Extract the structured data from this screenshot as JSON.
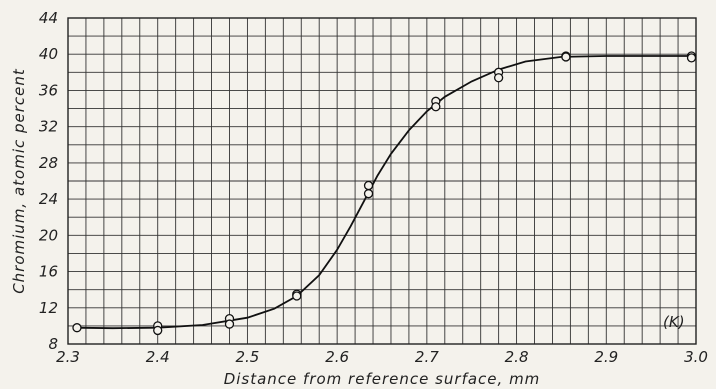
{
  "chart_data": {
    "type": "scatter",
    "xlabel": "Distance from reference surface, mm",
    "ylabel": "Chromium, atomic percent",
    "xlim": [
      2.3,
      3.0
    ],
    "ylim": [
      8,
      44
    ],
    "x_ticks": [
      "2.3",
      "2.4",
      "2.5",
      "2.6",
      "2.7",
      "2.8",
      "2.9",
      "3.0"
    ],
    "y_ticks": [
      "8",
      "12",
      "16",
      "20",
      "24",
      "28",
      "32",
      "36",
      "40",
      "44"
    ],
    "annotation": "(K)",
    "grid": true,
    "series": [
      {
        "style": "markers",
        "points": [
          [
            2.31,
            9.8
          ],
          [
            2.4,
            10.0
          ],
          [
            2.4,
            9.5
          ],
          [
            2.48,
            10.8
          ],
          [
            2.48,
            10.2
          ],
          [
            2.555,
            13.5
          ],
          [
            2.555,
            13.3
          ],
          [
            2.635,
            25.5
          ],
          [
            2.635,
            24.6
          ],
          [
            2.71,
            34.8
          ],
          [
            2.71,
            34.2
          ],
          [
            2.78,
            38.0
          ],
          [
            2.78,
            37.4
          ],
          [
            2.855,
            39.8
          ],
          [
            2.855,
            39.7
          ],
          [
            2.995,
            39.8
          ],
          [
            2.995,
            39.6
          ]
        ]
      },
      {
        "style": "line",
        "points": [
          [
            2.305,
            9.8
          ],
          [
            2.35,
            9.75
          ],
          [
            2.4,
            9.8
          ],
          [
            2.45,
            10.1
          ],
          [
            2.5,
            10.9
          ],
          [
            2.53,
            11.9
          ],
          [
            2.555,
            13.3
          ],
          [
            2.58,
            15.6
          ],
          [
            2.6,
            18.4
          ],
          [
            2.615,
            21.0
          ],
          [
            2.63,
            23.8
          ],
          [
            2.645,
            26.6
          ],
          [
            2.66,
            29.0
          ],
          [
            2.68,
            31.6
          ],
          [
            2.7,
            33.7
          ],
          [
            2.72,
            35.3
          ],
          [
            2.75,
            37.0
          ],
          [
            2.78,
            38.3
          ],
          [
            2.81,
            39.2
          ],
          [
            2.85,
            39.7
          ],
          [
            2.9,
            39.8
          ],
          [
            3.0,
            39.8
          ]
        ]
      }
    ]
  }
}
